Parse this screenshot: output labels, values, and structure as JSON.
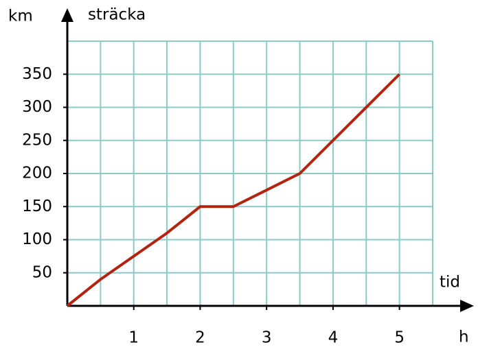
{
  "chart_data": {
    "type": "line",
    "y_unit": "km",
    "y_label": "sträcka",
    "x_label": "tid",
    "x_unit": "h",
    "x": [
      0,
      0.5,
      1.5,
      2,
      2.5,
      3.5,
      5
    ],
    "series": [
      {
        "color": "#b3230f",
        "values": [
          0,
          40,
          110,
          150,
          150,
          200,
          350
        ]
      }
    ],
    "xlim": [
      0,
      5.5
    ],
    "ylim": [
      0,
      400
    ],
    "xticks": [
      1,
      2,
      3,
      4,
      5
    ],
    "yticks": [
      50,
      100,
      150,
      200,
      250,
      300,
      350
    ],
    "grid": true,
    "grid_color": "#8ccaca"
  }
}
